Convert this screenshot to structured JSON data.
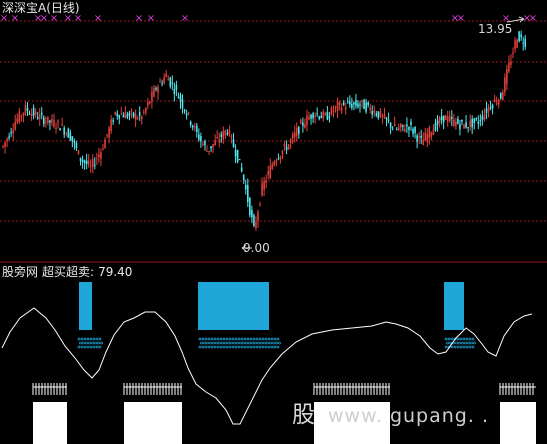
{
  "chart_header": {
    "stock_name": "深深宝A",
    "period": "(日线)"
  },
  "annotations": {
    "high_price": "13.95",
    "low_price": "9.00"
  },
  "indicator": {
    "source_label": "股旁网",
    "name": "超买超卖:",
    "value": "79.40"
  },
  "watermark": {
    "logo_char": "股",
    "site": "www. gupang. ."
  },
  "colors": {
    "background": "#000000",
    "up_candle": "#e0403a",
    "down_candle": "#4fe6ef",
    "grid": "#9b1818",
    "marker": "#e040e0",
    "line": "#ffffff",
    "block": "#1fa6d8",
    "bars": "#ffffff"
  },
  "chart_data": {
    "type": "candlestick",
    "y_range": [
      8.8,
      14.3
    ],
    "high_label": 13.95,
    "low_label": 9.0,
    "indicator_range": [
      0,
      100
    ]
  }
}
